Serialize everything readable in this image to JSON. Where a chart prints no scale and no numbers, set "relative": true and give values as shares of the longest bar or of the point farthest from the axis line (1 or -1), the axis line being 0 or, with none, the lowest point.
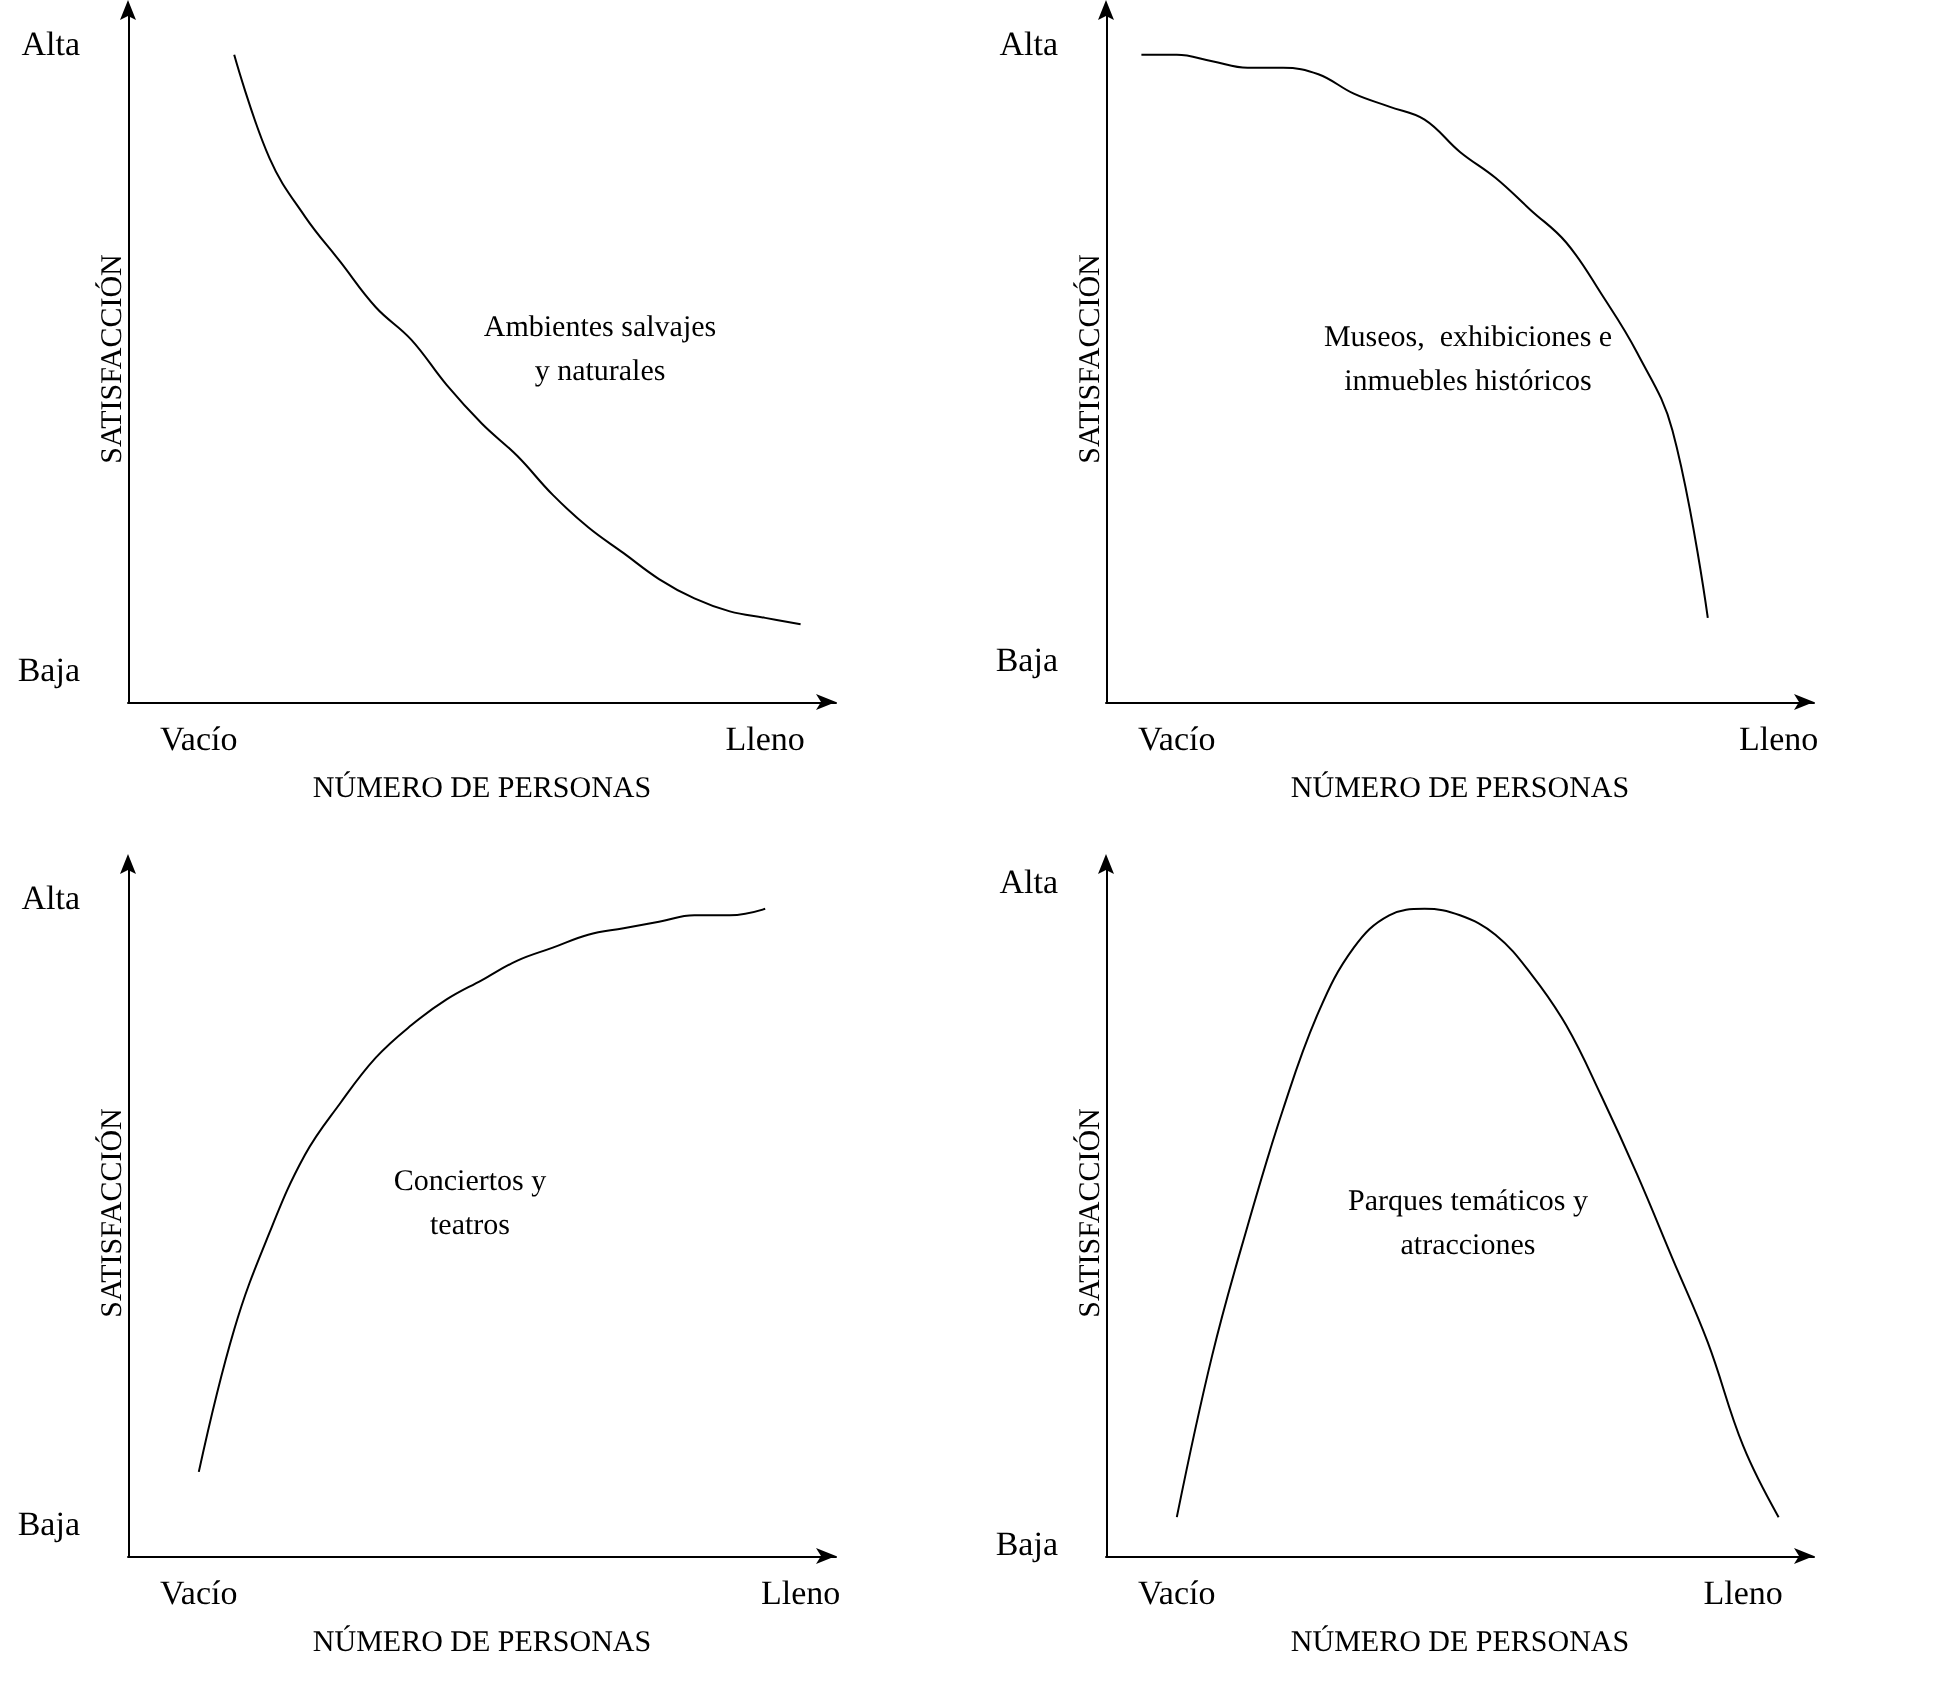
{
  "chart_data": [
    {
      "type": "line",
      "relative": true,
      "xlabel": "NÚMERO DE PERSONAS",
      "ylabel": "SATISFACCIÓN",
      "categories": [
        null,
        null,
        "Vacío",
        null,
        null,
        null,
        null,
        null,
        null,
        null,
        null,
        null,
        null,
        null,
        null,
        null,
        null,
        null,
        "Lleno",
        null,
        null
      ],
      "series": [
        {
          "color": "#000000",
          "values": [
            null,
            null,
            null,
            1,
            0.84,
            0.75,
            0.68,
            0.61,
            0.56,
            0.49,
            0.43,
            0.38,
            0.32,
            0.27,
            0.23,
            0.19,
            0.16,
            0.14,
            0.13,
            0.12,
            null
          ]
        }
      ],
      "annotations": [
        "Alta",
        "Baja",
        "Ambientes salvajes\ny naturales"
      ]
    },
    {
      "type": "line",
      "relative": true,
      "xlabel": "NÚMERO DE PERSONAS",
      "ylabel": "SATISFACCIÓN",
      "categories": [
        null,
        null,
        "Vacío",
        null,
        null,
        null,
        null,
        null,
        null,
        null,
        null,
        null,
        null,
        null,
        null,
        null,
        null,
        null,
        null,
        "Lleno",
        null
      ],
      "series": [
        {
          "color": "#000000",
          "values": [
            null,
            1,
            1,
            0.99,
            0.98,
            0.98,
            0.97,
            0.94,
            0.92,
            0.9,
            0.85,
            0.81,
            0.76,
            0.71,
            0.63,
            0.54,
            0.42,
            0.13,
            null,
            null,
            null
          ]
        }
      ],
      "annotations": [
        "Alta",
        "Baja",
        "Museos,  exhibiciones e\ninmuebles históricos"
      ]
    },
    {
      "type": "line",
      "relative": true,
      "xlabel": "NÚMERO DE PERSONAS",
      "ylabel": "SATISFACCIÓN",
      "categories": [
        null,
        null,
        "Vacío",
        null,
        null,
        null,
        null,
        null,
        null,
        null,
        null,
        null,
        null,
        null,
        null,
        null,
        null,
        null,
        null,
        "Lleno",
        null
      ],
      "series": [
        {
          "color": "#000000",
          "values": [
            null,
            null,
            0.13,
            0.35,
            0.5,
            0.62,
            0.7,
            0.77,
            0.82,
            0.86,
            0.89,
            0.92,
            0.94,
            0.96,
            0.97,
            0.98,
            0.99,
            0.99,
            1,
            null,
            null
          ]
        }
      ],
      "annotations": [
        "Alta",
        "Baja",
        "Conciertos y\nteatros"
      ]
    },
    {
      "type": "line",
      "relative": true,
      "xlabel": "NÚMERO DE PERSONAS",
      "ylabel": "SATISFACCIÓN",
      "categories": [
        null,
        null,
        "Vacío",
        null,
        null,
        null,
        null,
        null,
        null,
        null,
        null,
        null,
        null,
        null,
        null,
        null,
        null,
        null,
        "Lleno",
        null,
        null
      ],
      "series": [
        {
          "color": "#000000",
          "values": [
            null,
            null,
            0.06,
            0.31,
            0.51,
            0.69,
            0.84,
            0.94,
            0.99,
            1,
            0.99,
            0.96,
            0.9,
            0.82,
            0.71,
            0.59,
            0.46,
            0.33,
            0.17,
            0.06,
            null
          ]
        }
      ],
      "annotations": [
        "Alta",
        "Baja",
        "Parques temáticos y\natracciones"
      ]
    }
  ]
}
